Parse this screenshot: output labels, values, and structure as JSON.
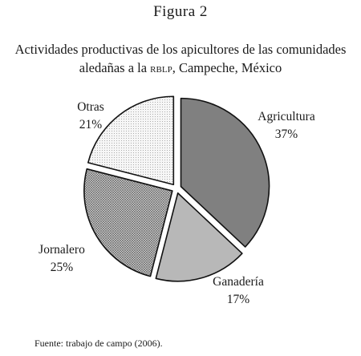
{
  "figure": {
    "number": "Figura 2",
    "title_line1": "Actividades productivas de los apicultores de las comunidades",
    "title_line2_prefix": "aledañas a la ",
    "title_line2_abbrev": "RBLP",
    "title_line2_suffix": ", Campeche, México",
    "source": "Fuente: trabajo de campo (2006)."
  },
  "chart_data": {
    "type": "pie",
    "title": "Actividades productivas de los apicultores de las comunidades aledañas a la RBLP, Campeche, México",
    "slices": [
      {
        "label": "Agricultura",
        "value": 37,
        "display": "37%",
        "fill": "#808080",
        "pattern": "solid"
      },
      {
        "label": "Ganadería",
        "value": 17,
        "display": "17%",
        "fill": "#b8b8b8",
        "pattern": "solid"
      },
      {
        "label": "Jornalero",
        "value": 25,
        "display": "25%",
        "fill": "#c9c9c9",
        "pattern": "crosshatch"
      },
      {
        "label": "Otras",
        "value": 21,
        "display": "21%",
        "fill": "#efefef",
        "pattern": "dots"
      }
    ],
    "start": "12 o'clock, clockwise",
    "style": "exploded slices with outlines"
  }
}
